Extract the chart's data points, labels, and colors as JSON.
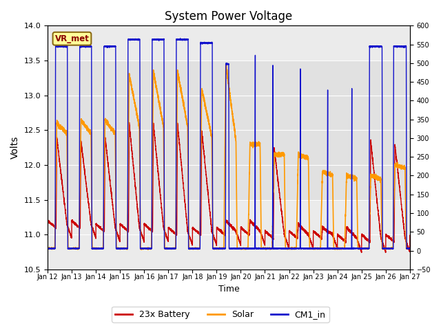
{
  "title": "System Power Voltage",
  "xlabel": "Time",
  "ylabel": "Volts",
  "xlim_days": [
    0,
    15
  ],
  "ylim_left": [
    10.5,
    14.0
  ],
  "ylim_right": [
    -50,
    600
  ],
  "x_tick_labels": [
    "Jan 12",
    "Jan 13",
    "Jan 14",
    "Jan 15",
    "Jan 16",
    "Jan 17",
    "Jan 18",
    "Jan 19",
    "Jan 20",
    "Jan 21",
    "Jan 22",
    "Jan 23",
    "Jan 24",
    "Jan 25",
    "Jan 26",
    "Jan 27"
  ],
  "colors": {
    "battery": "#cc0000",
    "solar": "#ff9900",
    "cm1": "#1111cc",
    "shading_even": "#d8d8d8",
    "shading_odd": "#ebebeb"
  },
  "legend_labels": [
    "23x Battery",
    "Solar",
    "CM1_in"
  ],
  "vr_met_label": "VR_met",
  "background_color": "#ffffff",
  "yticks_left": [
    10.5,
    11.0,
    11.5,
    12.0,
    12.5,
    13.0,
    13.5,
    14.0
  ],
  "yticks_right": [
    -50,
    0,
    50,
    100,
    150,
    200,
    250,
    300,
    350,
    400,
    450,
    500,
    550,
    600
  ],
  "shading_ylim": [
    11.5,
    13.5
  ]
}
